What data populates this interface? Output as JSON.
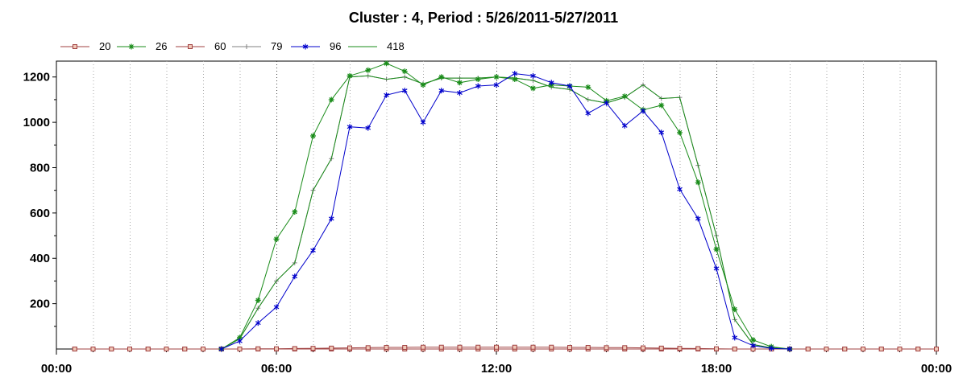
{
  "chart_data": {
    "type": "line",
    "title": "Cluster : 4, Period : 5/26/2011-5/27/2011",
    "xlabel": "",
    "ylabel": "",
    "x_unit": "hours",
    "x_ticks": [
      {
        "value": 0,
        "label": "00:00"
      },
      {
        "value": 6,
        "label": "06:00"
      },
      {
        "value": 12,
        "label": "12:00"
      },
      {
        "value": 18,
        "label": "18:00"
      },
      {
        "value": 24,
        "label": "00:00"
      }
    ],
    "y_ticks": [
      200,
      400,
      600,
      800,
      1000,
      1200
    ],
    "xlim": [
      0,
      24
    ],
    "ylim": [
      0,
      1270
    ],
    "grid": "vertical dotted lines",
    "legend_position": "top-left",
    "series": [
      {
        "name": "20",
        "color": "#a04040",
        "marker": "square",
        "x": [
          0.5,
          1,
          1.5,
          2,
          2.5,
          3,
          3.5,
          4,
          4.5,
          5,
          5.5,
          6,
          6.5,
          7,
          7.5,
          8,
          8.5,
          9,
          9.5,
          10,
          10.5,
          11,
          11.5,
          12,
          12.5,
          13,
          13.5,
          14,
          14.5,
          15,
          15.5,
          16,
          16.5,
          17,
          17.5,
          18,
          18.5,
          19,
          19.5,
          20,
          20.5,
          21,
          21.5,
          22,
          22.5,
          23,
          23.5,
          24
        ],
        "y": [
          0,
          0,
          0,
          0,
          0,
          0,
          0,
          0,
          0,
          0,
          1,
          1,
          2,
          3,
          4,
          5,
          6,
          7,
          7,
          8,
          8,
          8,
          8,
          8,
          8,
          8,
          8,
          7,
          7,
          6,
          6,
          5,
          4,
          3,
          2,
          1,
          0,
          0,
          0,
          0,
          0,
          0,
          0,
          0,
          0,
          0,
          0,
          0
        ]
      },
      {
        "name": "26",
        "color": "#1a8c1a",
        "marker": "asterisk",
        "x": [
          4.5,
          5,
          5.5,
          6,
          6.5,
          7,
          7.5,
          8,
          8.5,
          9,
          9.5,
          10,
          10.5,
          11,
          11.5,
          12,
          12.5,
          13,
          13.5,
          14,
          14.5,
          15,
          15.5,
          16,
          16.5,
          17,
          17.5,
          18,
          18.5,
          19,
          19.5,
          20
        ],
        "y": [
          0,
          50,
          215,
          485,
          605,
          940,
          1100,
          1205,
          1230,
          1260,
          1225,
          1165,
          1200,
          1175,
          1190,
          1200,
          1190,
          1150,
          1165,
          1160,
          1155,
          1095,
          1115,
          1055,
          1075,
          955,
          735,
          440,
          175,
          40,
          10,
          0
        ]
      },
      {
        "name": "60",
        "color": "#a04040",
        "marker": "square",
        "x": [
          0.5,
          1,
          1.5,
          2,
          2.5,
          3,
          3.5,
          4,
          4.5,
          5,
          5.5,
          6,
          6.5,
          7,
          7.5,
          8,
          8.5,
          9,
          9.5,
          10,
          10.5,
          11,
          11.5,
          12,
          12.5,
          13,
          13.5,
          14,
          14.5,
          15,
          15.5,
          16,
          16.5,
          17,
          17.5,
          18,
          18.5,
          19,
          19.5,
          20,
          20.5,
          21,
          21.5,
          22,
          22.5,
          23,
          23.5,
          24
        ],
        "y": [
          0,
          0,
          0,
          0,
          0,
          0,
          0,
          0,
          0,
          0,
          0,
          0,
          0,
          0,
          0,
          0,
          0,
          0,
          0,
          0,
          0,
          0,
          0,
          0,
          0,
          0,
          0,
          0,
          0,
          0,
          0,
          0,
          0,
          0,
          0,
          0,
          0,
          0,
          0,
          0,
          0,
          0,
          0,
          0,
          0,
          0,
          0,
          0
        ]
      },
      {
        "name": "79",
        "color": "#808080",
        "marker": "plus",
        "x": [
          4.5,
          5,
          5.5,
          6,
          6.5,
          7,
          7.5,
          8,
          8.5,
          9,
          9.5,
          10,
          10.5,
          11,
          11.5,
          12,
          12.5,
          13,
          13.5,
          14,
          14.5,
          15,
          15.5,
          16,
          16.5,
          17,
          17.5,
          18,
          18.5,
          19,
          19.5,
          20
        ],
        "y": [
          0,
          45,
          180,
          300,
          380,
          700,
          840,
          1200,
          1205,
          1190,
          1200,
          1170,
          1195,
          1195,
          1195,
          1200,
          1195,
          1185,
          1155,
          1145,
          1100,
          1085,
          1110,
          1165,
          1105,
          1110,
          810,
          500,
          130,
          20,
          5,
          0
        ]
      },
      {
        "name": "96",
        "color": "#0000cc",
        "marker": "star",
        "x": [
          4.5,
          5,
          5.5,
          6,
          6.5,
          7,
          7.5,
          8,
          8.5,
          9,
          9.5,
          10,
          10.5,
          11,
          11.5,
          12,
          12.5,
          13,
          13.5,
          14,
          14.5,
          15,
          15.5,
          16,
          16.5,
          17,
          17.5,
          18,
          18.5,
          19,
          19.5,
          20
        ],
        "y": [
          0,
          35,
          115,
          185,
          320,
          435,
          575,
          980,
          975,
          1120,
          1140,
          1000,
          1140,
          1130,
          1160,
          1165,
          1215,
          1205,
          1175,
          1160,
          1040,
          1085,
          985,
          1050,
          955,
          705,
          575,
          355,
          50,
          15,
          3,
          0
        ]
      },
      {
        "name": "418",
        "color": "#1a8c1a",
        "marker": "none",
        "x": [
          4.5,
          5,
          5.5,
          6,
          6.5,
          7,
          7.5,
          8,
          8.5,
          9,
          9.5,
          10,
          10.5,
          11,
          11.5,
          12,
          12.5,
          13,
          13.5,
          14,
          14.5,
          15,
          15.5,
          16,
          16.5,
          17,
          17.5,
          18,
          18.5,
          19,
          19.5,
          20
        ],
        "y": [
          0,
          45,
          180,
          300,
          380,
          700,
          840,
          1200,
          1205,
          1190,
          1200,
          1170,
          1195,
          1195,
          1195,
          1200,
          1195,
          1185,
          1155,
          1145,
          1100,
          1085,
          1110,
          1165,
          1105,
          1110,
          810,
          500,
          130,
          20,
          5,
          0
        ]
      }
    ]
  }
}
